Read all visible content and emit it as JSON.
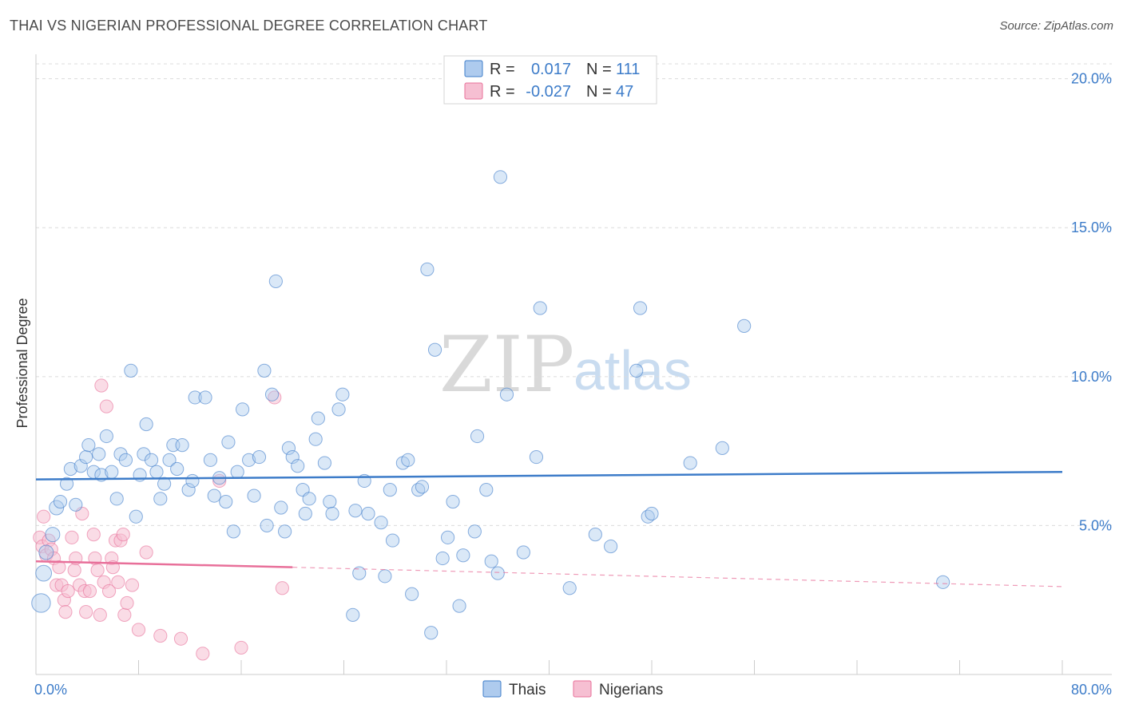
{
  "title": "THAI VS NIGERIAN PROFESSIONAL DEGREE CORRELATION CHART",
  "source": "Source: ZipAtlas.com",
  "watermark": {
    "zip": "ZIP",
    "atlas": "atlas"
  },
  "colors": {
    "thai": "#3d7cc9",
    "thai_fill": "#aecbee",
    "nigerian": "#e8709a",
    "nigerian_fill": "#f6bfd2"
  },
  "legend": {
    "r_label": "R =",
    "n_label": "N =",
    "thai": {
      "r": "0.017",
      "n": "111"
    },
    "nigerian": {
      "r": "-0.027",
      "n": "47"
    }
  },
  "bottom_legend": {
    "thai": "Thais",
    "nigerian": "Nigerians"
  },
  "chart_data": {
    "type": "scatter",
    "title": "THAI VS NIGERIAN PROFESSIONAL DEGREE CORRELATION CHART",
    "xlabel": "",
    "ylabel": "Professional Degree",
    "xlim": [
      0,
      80
    ],
    "ylim": [
      0,
      20.5
    ],
    "x_tick_labels": [
      "0.0%",
      "80.0%"
    ],
    "y_ticks": [
      5,
      10,
      15,
      20
    ],
    "y_tick_labels": [
      "5.0%",
      "10.0%",
      "15.0%",
      "20.0%"
    ],
    "series": [
      {
        "name": "Thais",
        "trend": {
          "x": [
            0,
            80
          ],
          "y": [
            6.55,
            6.8
          ]
        },
        "points": [
          [
            0.4,
            2.4,
            1.3
          ],
          [
            0.6,
            3.4,
            1.1
          ],
          [
            0.8,
            4.1,
            1.0
          ],
          [
            1.3,
            4.7,
            1.0
          ],
          [
            1.6,
            5.6,
            1.0
          ],
          [
            1.9,
            5.8,
            0.9
          ],
          [
            2.4,
            6.4,
            0.9
          ],
          [
            2.7,
            6.9,
            0.9
          ],
          [
            3.1,
            5.7,
            0.9
          ],
          [
            3.5,
            7.0,
            0.9
          ],
          [
            3.9,
            7.3,
            0.9
          ],
          [
            4.1,
            7.7,
            0.9
          ],
          [
            4.5,
            6.8,
            0.9
          ],
          [
            4.9,
            7.4,
            0.9
          ],
          [
            5.1,
            6.7,
            0.9
          ],
          [
            5.5,
            8.0,
            0.9
          ],
          [
            5.9,
            6.8,
            0.9
          ],
          [
            6.3,
            5.9,
            0.9
          ],
          [
            6.6,
            7.4,
            0.9
          ],
          [
            7.0,
            7.2,
            0.9
          ],
          [
            7.4,
            10.2,
            0.9
          ],
          [
            7.8,
            5.3,
            0.9
          ],
          [
            8.1,
            6.7,
            0.9
          ],
          [
            8.4,
            7.4,
            0.9
          ],
          [
            8.6,
            8.4,
            0.9
          ],
          [
            9.0,
            7.2,
            0.9
          ],
          [
            9.4,
            6.8,
            0.9
          ],
          [
            9.7,
            5.9,
            0.9
          ],
          [
            10.0,
            6.4,
            0.9
          ],
          [
            10.4,
            7.2,
            0.9
          ],
          [
            10.7,
            7.7,
            0.9
          ],
          [
            11.0,
            6.9,
            0.9
          ],
          [
            11.4,
            7.7,
            0.9
          ],
          [
            11.9,
            6.2,
            0.9
          ],
          [
            12.2,
            6.5,
            0.9
          ],
          [
            12.4,
            9.3,
            0.9
          ],
          [
            13.2,
            9.3,
            0.9
          ],
          [
            13.6,
            7.2,
            0.9
          ],
          [
            13.9,
            6.0,
            0.9
          ],
          [
            14.3,
            6.6,
            0.9
          ],
          [
            14.8,
            5.8,
            0.9
          ],
          [
            15.0,
            7.8,
            0.9
          ],
          [
            15.4,
            4.8,
            0.9
          ],
          [
            15.7,
            6.8,
            0.9
          ],
          [
            16.1,
            8.9,
            0.9
          ],
          [
            16.6,
            7.2,
            0.9
          ],
          [
            17.0,
            6.0,
            0.9
          ],
          [
            17.4,
            7.3,
            0.9
          ],
          [
            17.8,
            10.2,
            0.9
          ],
          [
            18.0,
            5.0,
            0.9
          ],
          [
            18.4,
            9.4,
            0.9
          ],
          [
            18.7,
            13.2,
            0.9
          ],
          [
            19.1,
            5.6,
            0.9
          ],
          [
            19.4,
            4.8,
            0.9
          ],
          [
            19.7,
            7.6,
            0.9
          ],
          [
            20.0,
            7.3,
            0.9
          ],
          [
            20.4,
            7.0,
            0.9
          ],
          [
            20.8,
            6.2,
            0.9
          ],
          [
            21.0,
            5.4,
            0.9
          ],
          [
            21.3,
            5.9,
            0.9
          ],
          [
            21.8,
            7.9,
            0.9
          ],
          [
            22.0,
            8.6,
            0.9
          ],
          [
            22.5,
            7.1,
            0.9
          ],
          [
            22.9,
            5.8,
            0.9
          ],
          [
            23.1,
            5.4,
            0.9
          ],
          [
            23.6,
            8.9,
            0.9
          ],
          [
            23.9,
            9.4,
            0.9
          ],
          [
            24.7,
            2.0,
            0.9
          ],
          [
            24.9,
            5.5,
            0.9
          ],
          [
            25.2,
            3.4,
            0.9
          ],
          [
            25.6,
            6.5,
            0.9
          ],
          [
            25.9,
            5.4,
            0.9
          ],
          [
            26.9,
            5.1,
            0.9
          ],
          [
            27.2,
            3.3,
            0.9
          ],
          [
            27.6,
            6.2,
            0.9
          ],
          [
            27.8,
            4.5,
            0.9
          ],
          [
            28.6,
            7.1,
            0.9
          ],
          [
            29.0,
            7.2,
            0.9
          ],
          [
            29.3,
            2.7,
            0.9
          ],
          [
            29.8,
            6.2,
            0.9
          ],
          [
            30.1,
            6.3,
            0.9
          ],
          [
            30.5,
            13.6,
            0.9
          ],
          [
            30.8,
            1.4,
            0.9
          ],
          [
            31.1,
            10.9,
            0.9
          ],
          [
            31.7,
            3.9,
            0.9
          ],
          [
            32.1,
            4.6,
            0.9
          ],
          [
            32.5,
            5.8,
            0.9
          ],
          [
            33.0,
            2.3,
            0.9
          ],
          [
            33.3,
            4.0,
            0.9
          ],
          [
            34.2,
            4.8,
            0.9
          ],
          [
            34.4,
            8.0,
            0.9
          ],
          [
            35.1,
            6.2,
            0.9
          ],
          [
            35.5,
            3.8,
            0.9
          ],
          [
            36.0,
            3.4,
            0.9
          ],
          [
            36.2,
            16.7,
            0.9
          ],
          [
            36.7,
            9.4,
            0.9
          ],
          [
            38.0,
            4.1,
            0.9
          ],
          [
            39.0,
            7.3,
            0.9
          ],
          [
            39.3,
            12.3,
            0.9
          ],
          [
            41.6,
            2.9,
            0.9
          ],
          [
            43.6,
            4.7,
            0.9
          ],
          [
            44.8,
            4.3,
            0.9
          ],
          [
            46.8,
            10.2,
            0.9
          ],
          [
            47.1,
            12.3,
            0.9
          ],
          [
            47.7,
            5.3,
            0.9
          ],
          [
            48.0,
            5.4,
            0.9
          ],
          [
            51.0,
            7.1,
            0.9
          ],
          [
            53.5,
            7.6,
            0.9
          ],
          [
            55.2,
            11.7,
            0.9
          ],
          [
            70.7,
            3.1,
            0.9
          ]
        ]
      },
      {
        "name": "Nigerians",
        "trend": {
          "x": [
            0,
            20
          ],
          "y": [
            3.8,
            3.6
          ],
          "dashed_to": {
            "x": 80,
            "y": 2.95
          }
        },
        "points": [
          [
            0.3,
            4.6,
            0.9
          ],
          [
            0.5,
            4.3,
            0.9
          ],
          [
            0.6,
            5.3,
            0.9
          ],
          [
            0.8,
            4.0,
            0.9
          ],
          [
            1.0,
            4.5,
            0.9
          ],
          [
            1.2,
            4.2,
            0.9
          ],
          [
            1.4,
            3.9,
            0.9
          ],
          [
            1.6,
            3.0,
            0.9
          ],
          [
            1.8,
            3.6,
            0.9
          ],
          [
            2.0,
            3.0,
            0.9
          ],
          [
            2.2,
            2.5,
            0.9
          ],
          [
            2.3,
            2.1,
            0.9
          ],
          [
            2.5,
            2.8,
            0.9
          ],
          [
            2.8,
            4.6,
            0.9
          ],
          [
            3.0,
            3.5,
            0.9
          ],
          [
            3.1,
            3.9,
            0.9
          ],
          [
            3.4,
            3.0,
            0.9
          ],
          [
            3.6,
            5.4,
            0.9
          ],
          [
            3.8,
            2.8,
            0.9
          ],
          [
            3.9,
            2.1,
            0.9
          ],
          [
            4.2,
            2.8,
            0.9
          ],
          [
            4.5,
            4.7,
            0.9
          ],
          [
            4.6,
            3.9,
            0.9
          ],
          [
            4.8,
            3.5,
            0.9
          ],
          [
            5.0,
            2.0,
            0.9
          ],
          [
            5.1,
            9.7,
            0.9
          ],
          [
            5.3,
            3.1,
            0.9
          ],
          [
            5.5,
            9.0,
            0.9
          ],
          [
            5.7,
            2.8,
            0.9
          ],
          [
            5.9,
            3.9,
            0.9
          ],
          [
            6.0,
            3.6,
            0.9
          ],
          [
            6.2,
            4.5,
            0.9
          ],
          [
            6.4,
            3.1,
            0.9
          ],
          [
            6.6,
            4.5,
            0.9
          ],
          [
            6.8,
            4.7,
            0.9
          ],
          [
            6.9,
            2.0,
            0.9
          ],
          [
            7.1,
            2.4,
            0.9
          ],
          [
            7.5,
            3.0,
            0.9
          ],
          [
            8.0,
            1.5,
            0.9
          ],
          [
            8.6,
            4.1,
            0.9
          ],
          [
            9.7,
            1.3,
            0.9
          ],
          [
            11.3,
            1.2,
            0.9
          ],
          [
            13.0,
            0.7,
            0.9
          ],
          [
            14.3,
            6.5,
            0.9
          ],
          [
            16.0,
            0.9,
            0.9
          ],
          [
            18.6,
            9.3,
            0.9
          ],
          [
            19.2,
            2.9,
            0.9
          ]
        ]
      }
    ]
  }
}
